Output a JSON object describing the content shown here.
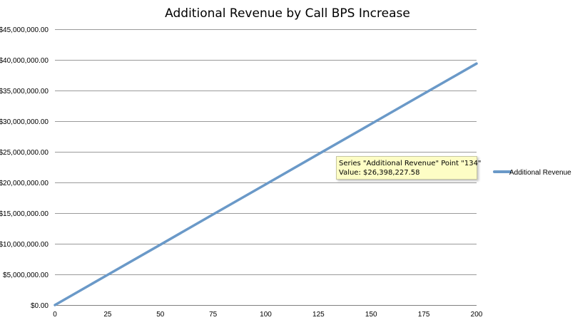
{
  "chart_data": {
    "type": "line",
    "title": "Additional Revenue by Call BPS Increase",
    "xlabel": "",
    "ylabel": "",
    "xlim": [
      0,
      200
    ],
    "ylim": [
      0,
      45000000
    ],
    "x_ticks": [
      0,
      25,
      50,
      75,
      100,
      125,
      150,
      175,
      200
    ],
    "y_ticks": [
      0,
      5000000,
      10000000,
      15000000,
      20000000,
      25000000,
      30000000,
      35000000,
      40000000,
      45000000
    ],
    "y_tick_labels": [
      "$0.00",
      "$5,000,000.00",
      "$10,000,000.00",
      "$15,000,000.00",
      "$20,000,000.00",
      "$25,000,000.00",
      "$30,000,000.00",
      "$35,000,000.00",
      "$40,000,000.00",
      "$45,000,000.00"
    ],
    "grid": true,
    "legend_position": "right",
    "series": [
      {
        "name": "Additional Revenue",
        "color": "#6a99c8",
        "x": [
          0,
          25,
          50,
          75,
          100,
          125,
          150,
          175,
          200
        ],
        "values": [
          0,
          4925042,
          9850084,
          14775126,
          19700170,
          24625212,
          29550254,
          34475296,
          39400340
        ]
      }
    ],
    "tooltip": {
      "line1": "Series \"Additional Revenue\" Point \"134\"",
      "line2": "Value: $26,398,227.58"
    }
  }
}
